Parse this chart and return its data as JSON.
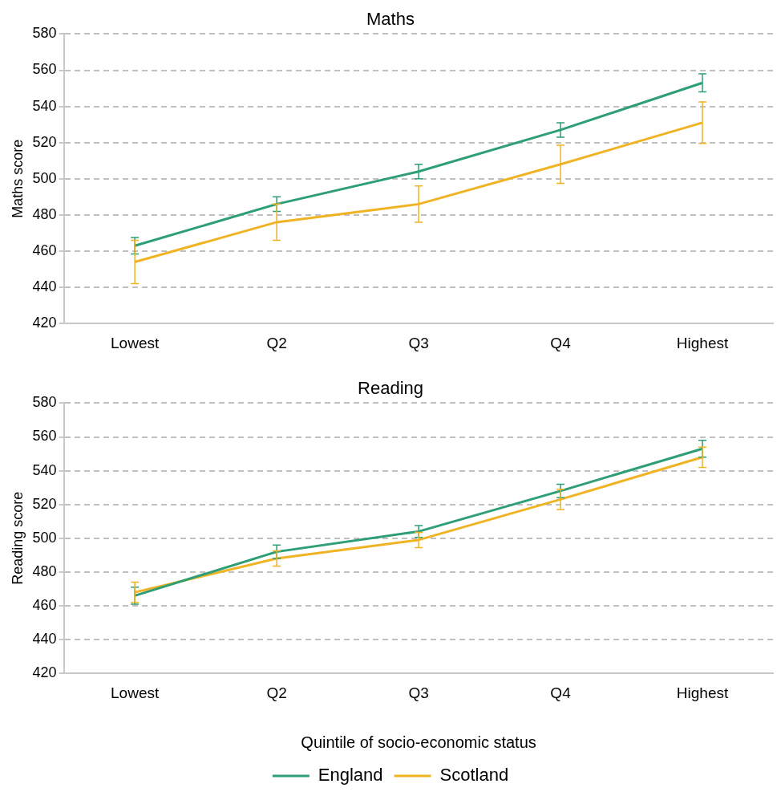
{
  "chart_data": [
    {
      "type": "line",
      "title": "Maths",
      "ylabel": "Maths score",
      "categories": [
        "Lowest",
        "Q2",
        "Q3",
        "Q4",
        "Highest"
      ],
      "ylim": [
        420,
        580
      ],
      "yticks": [
        420,
        440,
        460,
        480,
        500,
        520,
        540,
        560,
        580
      ],
      "grid": "y",
      "line_style": "solid",
      "marker": "none",
      "legend": false,
      "series": [
        {
          "color": "#2e9e74",
          "values": [
            463,
            486,
            504,
            527,
            553
          ],
          "errors": [
            4.5,
            4,
            4,
            4,
            5
          ]
        },
        {
          "color": "#f0b323",
          "values": [
            454,
            476,
            486,
            508,
            531
          ],
          "errors": [
            12,
            10,
            10,
            10.5,
            11.5
          ]
        }
      ]
    },
    {
      "type": "line",
      "title": "Reading",
      "ylabel": "Reading score",
      "xlabel": "Quintile of socio-economic status",
      "categories": [
        "Lowest",
        "Q2",
        "Q3",
        "Q4",
        "Highest"
      ],
      "ylim": [
        420,
        580
      ],
      "yticks": [
        420,
        440,
        460,
        480,
        500,
        520,
        540,
        560,
        580
      ],
      "grid": "y",
      "line_style": "solid",
      "marker": "none",
      "legend": "bottom",
      "series": [
        {
          "name": "England",
          "color": "#2e9e74",
          "values": [
            466,
            492,
            504,
            528,
            553
          ],
          "errors": [
            5,
            4,
            3.5,
            4,
            5
          ]
        },
        {
          "name": "Scotland",
          "color": "#f0b323",
          "values": [
            468,
            488,
            499,
            523,
            548
          ],
          "errors": [
            6,
            4.5,
            4.5,
            6,
            6
          ]
        }
      ]
    }
  ]
}
